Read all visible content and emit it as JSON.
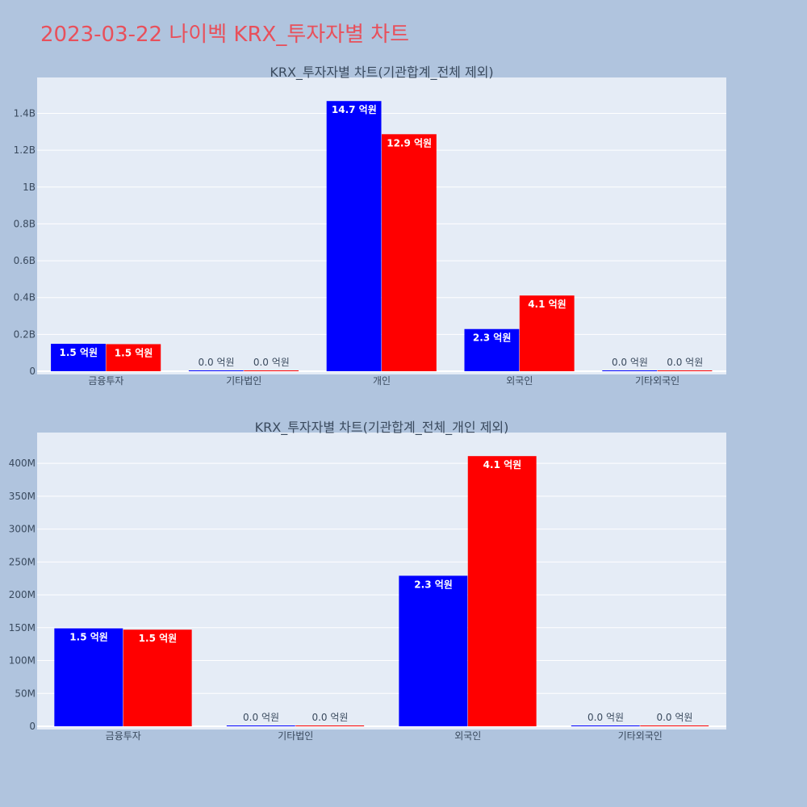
{
  "page": {
    "title": "2023-03-22 나이벡 KRX_투자자별 차트"
  },
  "colors": {
    "buy": "#0000ff",
    "sell": "#ff0000",
    "plot_bg": "#e5ecf6",
    "paper_bg": "#b0c4de",
    "title": "#e8505b"
  },
  "chart_data": [
    {
      "type": "bar",
      "title": "KRX_투자자별 차트(기관합계_전체 제외)",
      "categories": [
        "금융투자",
        "기타법인",
        "개인",
        "외국인",
        "기타외국인"
      ],
      "ylim": [
        0,
        1560000000
      ],
      "yticks": [
        0,
        200000000,
        400000000,
        600000000,
        800000000,
        1000000000,
        1200000000,
        1400000000
      ],
      "ytick_labels": [
        "0",
        "0.2B",
        "0.4B",
        "0.6B",
        "0.8B",
        "1B",
        "1.2B",
        "1.4B"
      ],
      "grid": true,
      "series": [
        {
          "values": [
            149000000,
            1000000,
            1467000000,
            229000000,
            1000000
          ],
          "labels": [
            "1.5 억원",
            "0.0 억원",
            "14.7 억원",
            "2.3 억원",
            "0.0 억원"
          ]
        },
        {
          "values": [
            147000000,
            1000000,
            1287000000,
            411000000,
            1000000
          ],
          "labels": [
            "1.5 억원",
            "0.0 억원",
            "12.9 억원",
            "4.1 억원",
            "0.0 억원"
          ]
        }
      ]
    },
    {
      "type": "bar",
      "title": "KRX_투자자별 차트(기관합계_전체_개인 제외)",
      "categories": [
        "금융투자",
        "기타법인",
        "외국인",
        "기타외국인"
      ],
      "ylim": [
        0,
        437000000
      ],
      "yticks": [
        0,
        50000000,
        100000000,
        150000000,
        200000000,
        250000000,
        300000000,
        350000000,
        400000000
      ],
      "ytick_labels": [
        "0",
        "50M",
        "100M",
        "150M",
        "200M",
        "250M",
        "300M",
        "350M",
        "400M"
      ],
      "grid": true,
      "series": [
        {
          "values": [
            149000000,
            1000000,
            229000000,
            1000000
          ],
          "labels": [
            "1.5 억원",
            "0.0 억원",
            "2.3 억원",
            "0.0 억원"
          ]
        },
        {
          "values": [
            147000000,
            1000000,
            411000000,
            1000000
          ],
          "labels": [
            "1.5 억원",
            "0.0 억원",
            "4.1 억원",
            "0.0 억원"
          ]
        }
      ]
    }
  ]
}
